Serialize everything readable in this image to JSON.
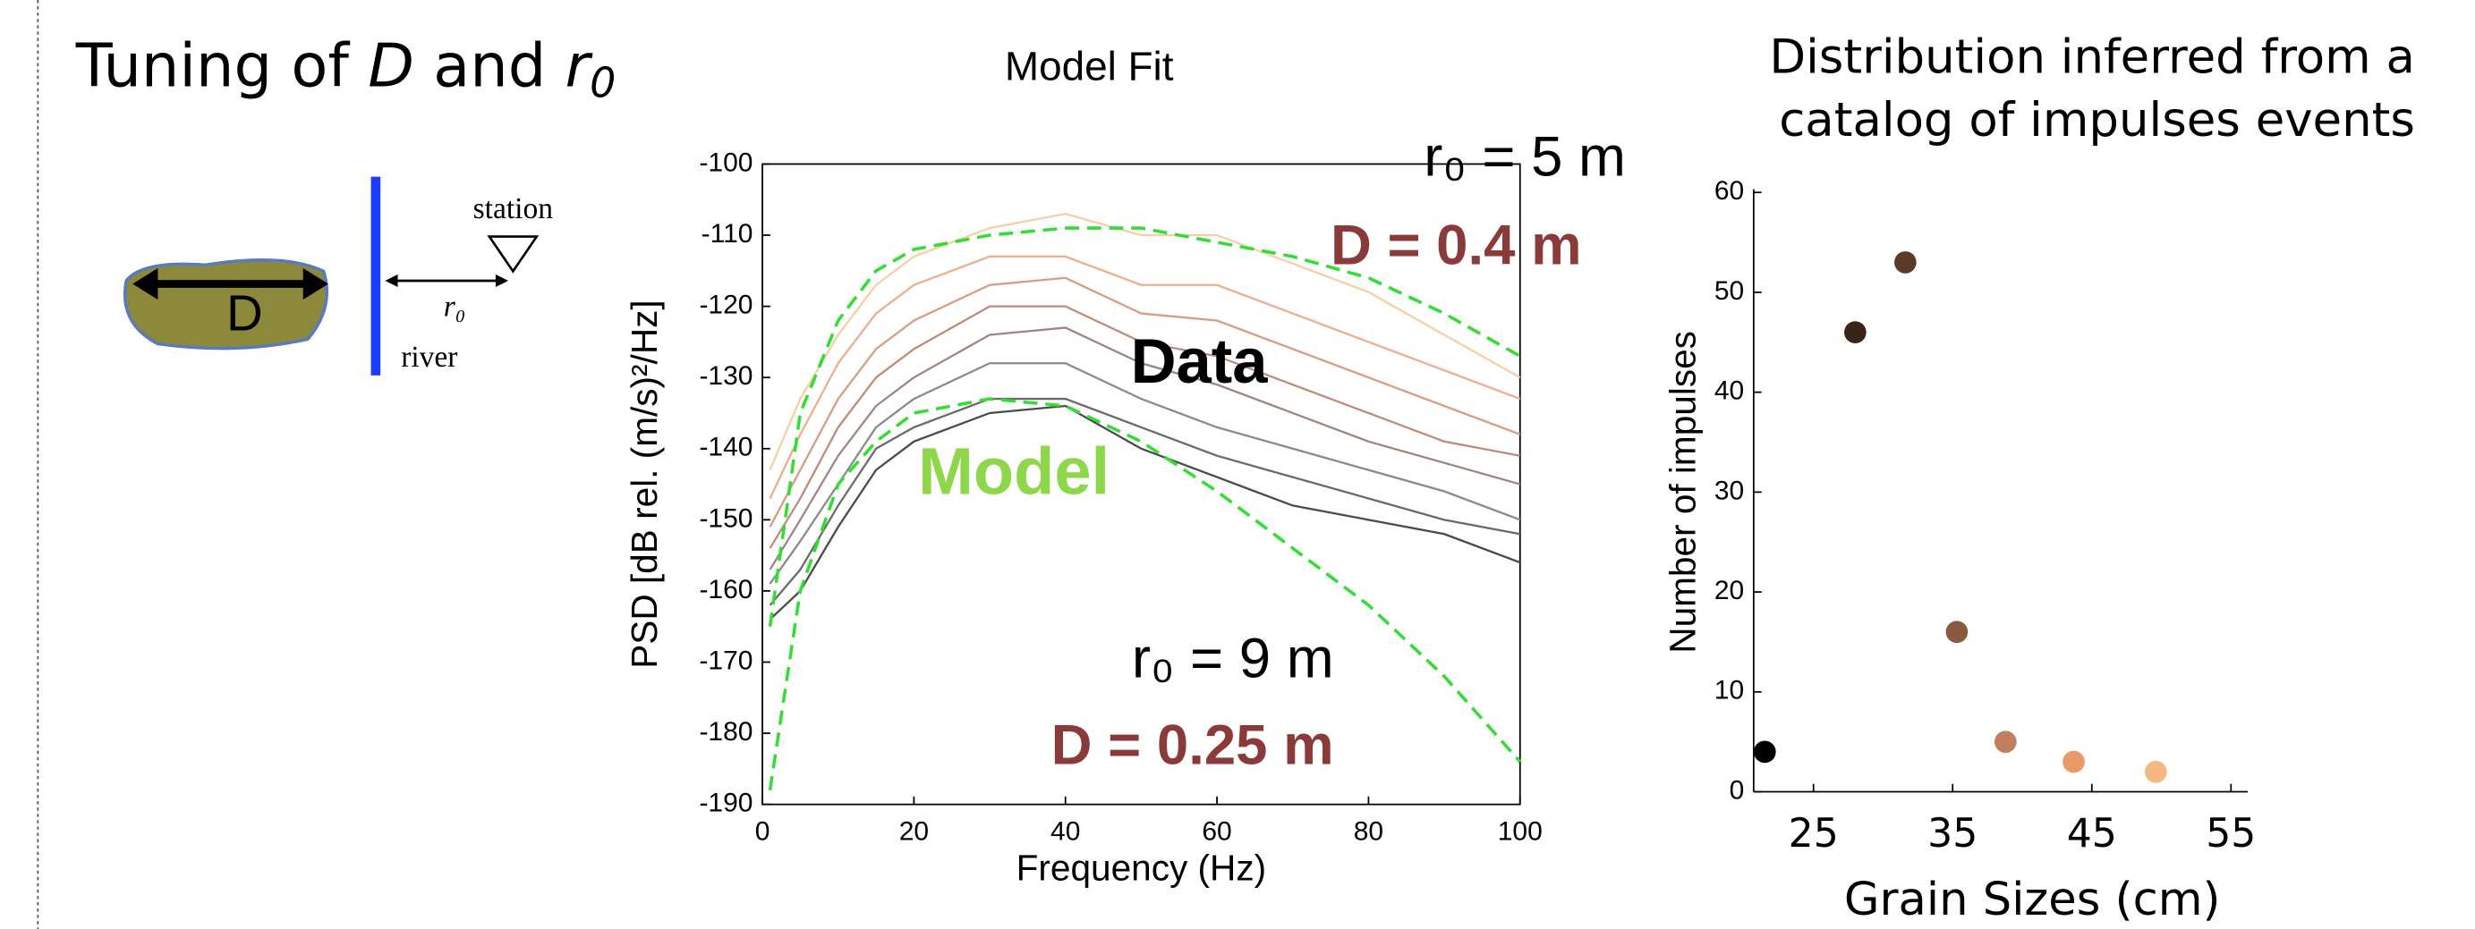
{
  "slide": {
    "title_parts": [
      "Tuning of ",
      "D",
      " and ",
      "r",
      "0"
    ]
  },
  "diagram": {
    "size_label": "D",
    "station": "station",
    "river": "river",
    "distance_label": "r₀"
  },
  "chart_data": [
    {
      "type": "line",
      "title": "Model Fit",
      "xlabel": "Frequency (Hz)",
      "ylabel": "PSD [dB rel. (m/s)²/Hz]",
      "x": [
        1,
        5,
        10,
        15,
        20,
        30,
        40,
        50,
        60,
        70,
        80,
        90,
        100
      ],
      "xlim": [
        0,
        100
      ],
      "ylim": [
        -190,
        -100
      ],
      "xticks": [
        0,
        20,
        40,
        60,
        80,
        100
      ],
      "yticks": [
        -190,
        -180,
        -170,
        -160,
        -150,
        -140,
        -130,
        -120,
        -110,
        -100
      ],
      "series": [
        {
          "color": "#f7cfa4",
          "style": "solid",
          "values": [
            -143,
            -133,
            -124,
            -117,
            -113,
            -109,
            -107,
            -110,
            -110,
            -114,
            -118,
            -124,
            -130
          ]
        },
        {
          "color": "#eeae8c",
          "style": "solid",
          "values": [
            -147,
            -138,
            -128,
            -121,
            -117,
            -113,
            -113,
            -117,
            -117,
            -121,
            -125,
            -129,
            -133
          ]
        },
        {
          "color": "#d99c82",
          "style": "solid",
          "values": [
            -151,
            -143,
            -133,
            -126,
            -122,
            -117,
            -116,
            -121,
            -122,
            -126,
            -130,
            -134,
            -138
          ]
        },
        {
          "color": "#c08a7a",
          "style": "solid",
          "values": [
            -154,
            -147,
            -137,
            -130,
            -126,
            -120,
            -120,
            -125,
            -127,
            -131,
            -135,
            -139,
            -141
          ]
        },
        {
          "color": "#a08482",
          "style": "solid",
          "values": [
            -157,
            -150,
            -141,
            -134,
            -130,
            -124,
            -123,
            -128,
            -131,
            -135,
            -139,
            -142,
            -145
          ]
        },
        {
          "color": "#8a8a8a",
          "style": "solid",
          "values": [
            -159,
            -153,
            -145,
            -137,
            -133,
            -128,
            -128,
            -133,
            -137,
            -140,
            -143,
            -146,
            -150
          ]
        },
        {
          "color": "#6a6a6a",
          "style": "solid",
          "values": [
            -162,
            -157,
            -148,
            -140,
            -137,
            -133,
            -133,
            -137,
            -141,
            -144,
            -147,
            -150,
            -152
          ]
        },
        {
          "color": "#4a4a4a",
          "style": "solid",
          "values": [
            -164,
            -160,
            -151,
            -143,
            -139,
            -135,
            -134,
            -140,
            -144,
            -148,
            -150,
            -152,
            -156
          ]
        },
        {
          "color": "#33dd33",
          "style": "dashed",
          "values": [
            -165,
            -135,
            -122,
            -115,
            -112,
            -110,
            -109,
            -109,
            -111,
            -113,
            -116,
            -121,
            -127
          ]
        },
        {
          "color": "#33dd33",
          "style": "dashed",
          "values": [
            -188,
            -160,
            -145,
            -139,
            -135,
            -133,
            -134,
            -139,
            -146,
            -154,
            -162,
            -172,
            -184
          ]
        }
      ],
      "annotations": [
        {
          "text": "r₀ = 5 m",
          "color": "#000000"
        },
        {
          "text": "D = 0.4 m",
          "color": "#8b3a3a"
        },
        {
          "text": "Data",
          "color": "#000000"
        },
        {
          "text": "Model",
          "color": "#8ed64a"
        },
        {
          "text": "r₀ = 9 m",
          "color": "#000000"
        },
        {
          "text": "D = 0.25 m",
          "color": "#8b3a3a"
        }
      ]
    },
    {
      "type": "scatter",
      "title_lines": [
        "Distribution inferred from a",
        "catalog of impulses events"
      ],
      "xlabel": "Grain Sizes (cm)",
      "ylabel": "Number of impulses",
      "x": [
        21.5,
        28,
        31.6,
        35.3,
        38.8,
        43.7,
        49.6
      ],
      "y": [
        4,
        46,
        53,
        16,
        5,
        3,
        2
      ],
      "colors": [
        "#000000",
        "#3a2418",
        "#5a3a28",
        "#8a5a40",
        "#c08060",
        "#e89a68",
        "#f5b880"
      ],
      "xlim": [
        20.7,
        56.2
      ],
      "ylim": [
        0,
        60
      ],
      "xticks": [
        25,
        35,
        45,
        55
      ],
      "yticks": [
        0,
        10,
        20,
        30,
        40,
        50,
        60
      ]
    }
  ]
}
